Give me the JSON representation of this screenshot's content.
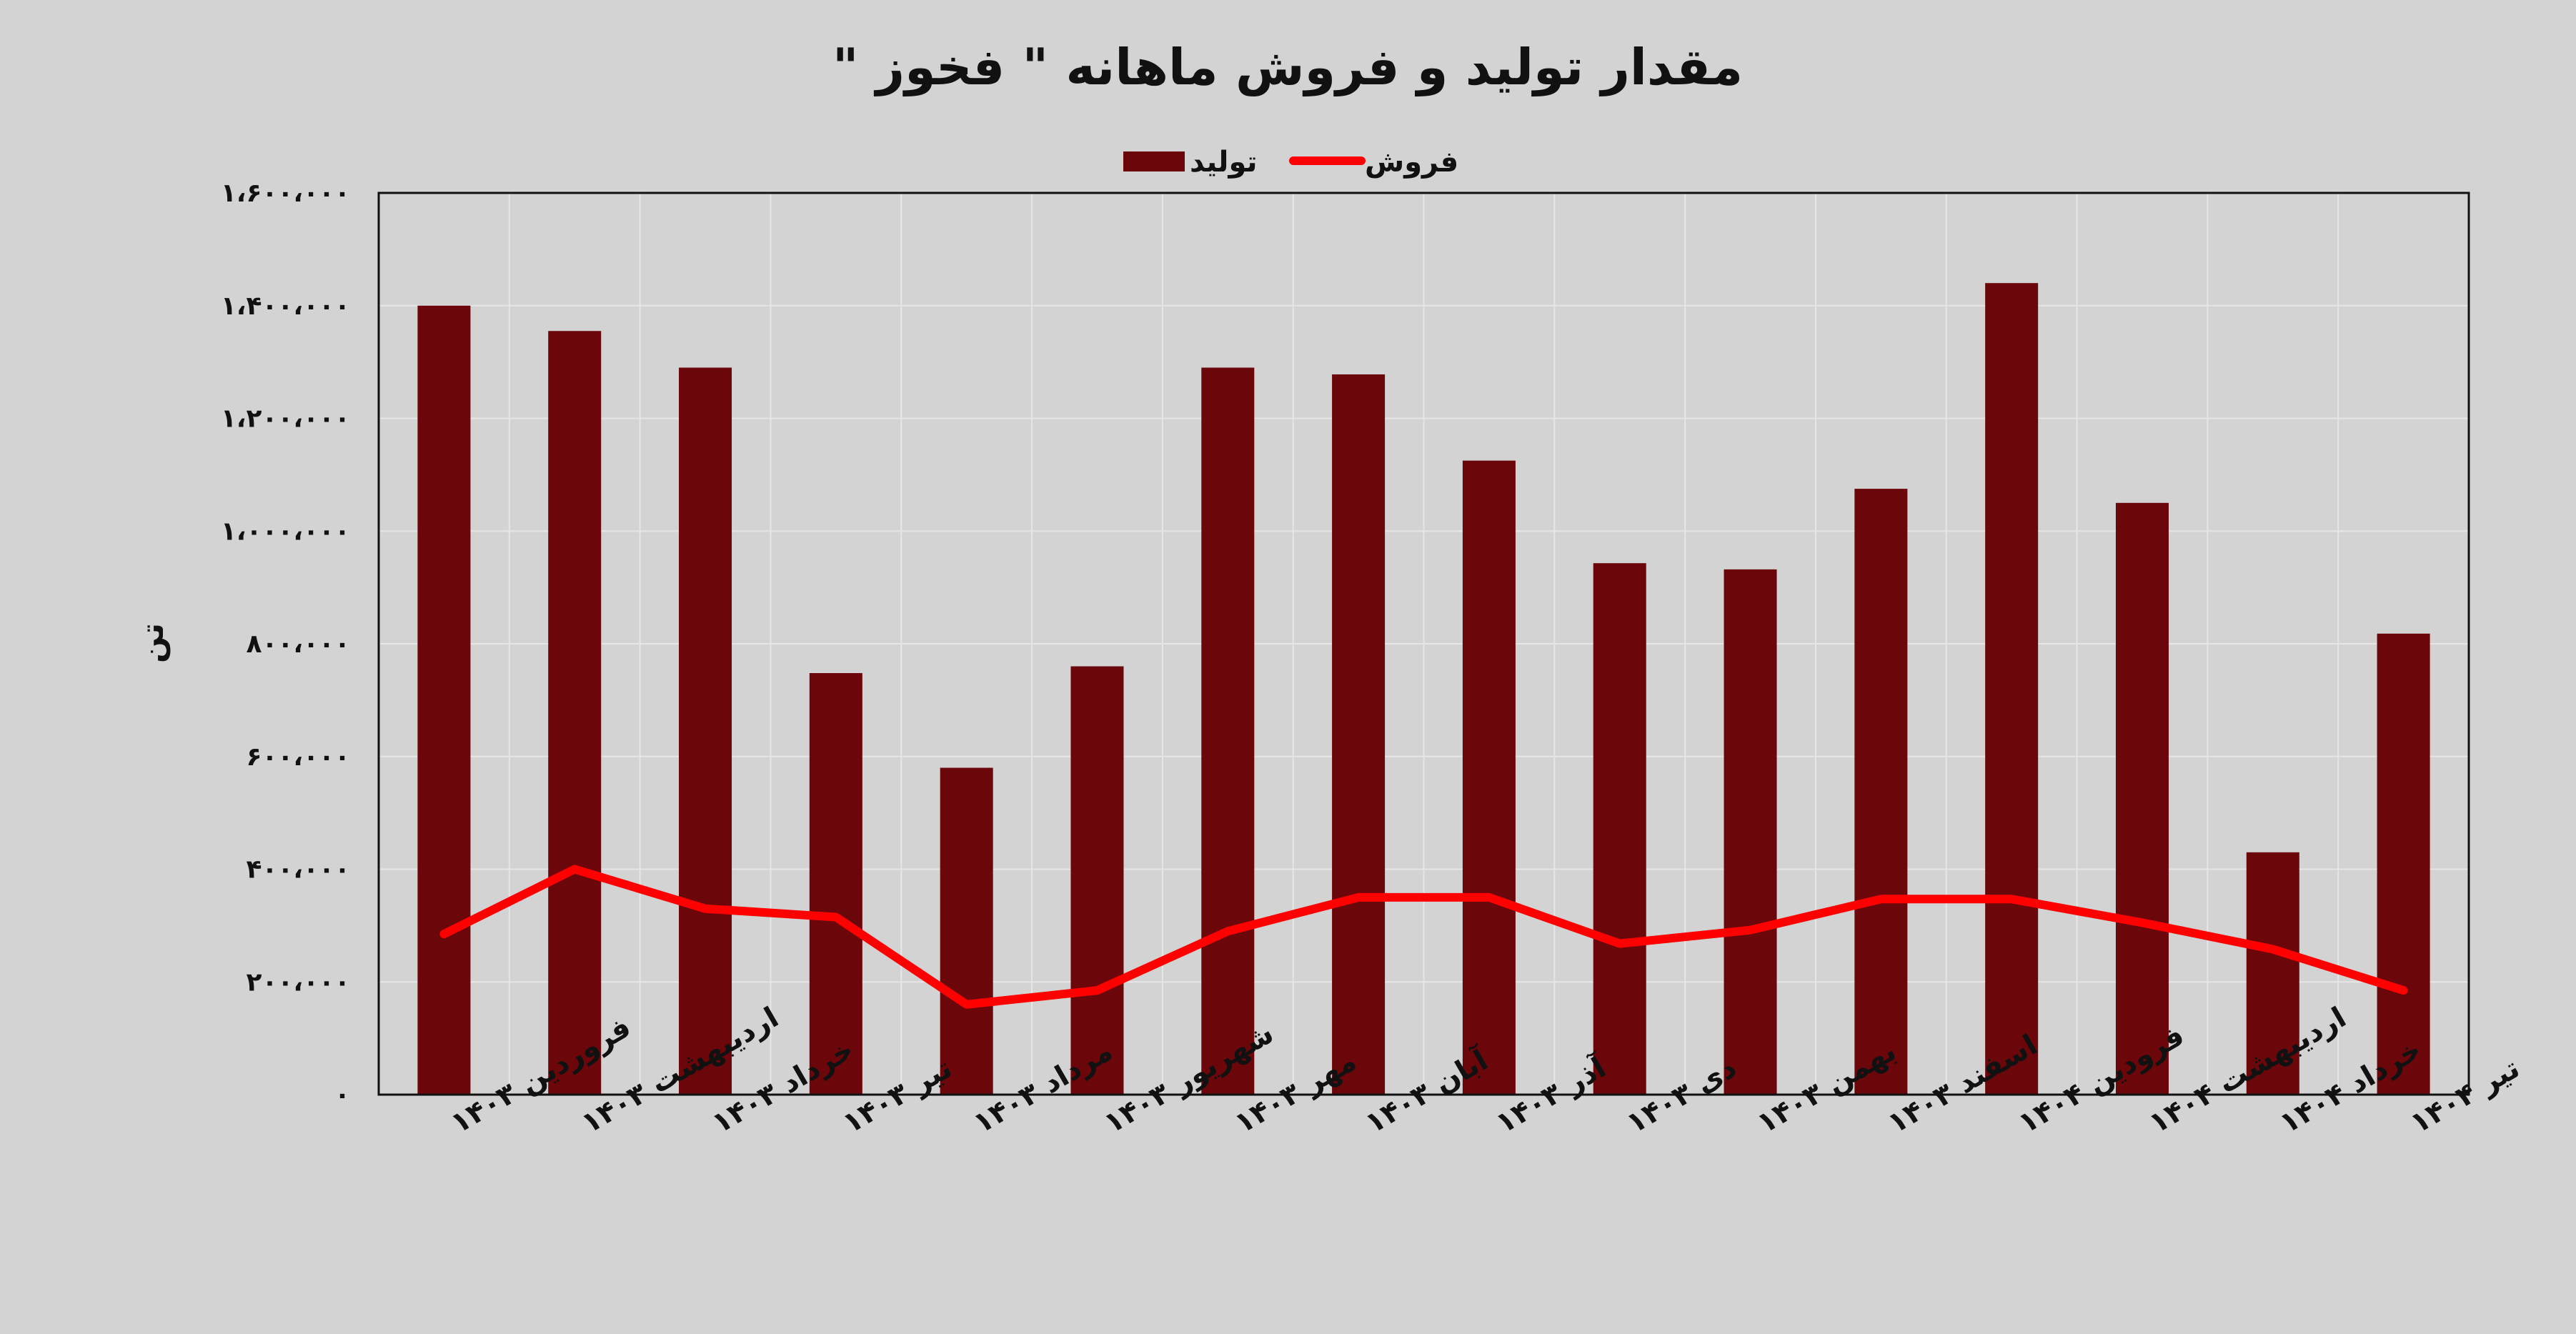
{
  "chart_data": {
    "type": "bar",
    "title": "مقدار تولید و فروش ماهانه \" فخوز \"",
    "ylabel": "تن",
    "xlabel": "",
    "ylim": [
      0,
      1600000
    ],
    "yticks": [
      0,
      200000,
      400000,
      600000,
      800000,
      1000000,
      1200000,
      1400000,
      1600000
    ],
    "ytick_labels": [
      "۰",
      "۲۰۰،۰۰۰",
      "۴۰۰،۰۰۰",
      "۶۰۰،۰۰۰",
      "۸۰۰،۰۰۰",
      "۱،۰۰۰،۰۰۰",
      "۱،۲۰۰،۰۰۰",
      "۱،۴۰۰،۰۰۰",
      "۱،۶۰۰،۰۰۰"
    ],
    "grid": true,
    "legend_position": "top-center",
    "categories": [
      "فروردین ۱۴۰۳",
      "اردیبهشت ۱۴۰۳",
      "خرداد ۱۴۰۳",
      "تیر ۱۴۰۳",
      "مرداد ۱۴۰۳",
      "شهریور ۱۴۰۳",
      "مهر ۱۴۰۳",
      "آبان ۱۴۰۳",
      "آذر ۱۴۰۳",
      "دی ۱۴۰۳",
      "بهمن ۱۴۰۳",
      "اسفند ۱۴۰۳",
      "فرودین ۱۴۰۴",
      "اردیبهشت ۱۴۰۴",
      "خرداد ۱۴۰۴",
      "تیر ۱۴۰۴"
    ],
    "series": [
      {
        "name": "تولید",
        "type": "bar",
        "color": "#6b060b",
        "values": [
          1400000,
          1355000,
          1290000,
          748000,
          580000,
          760000,
          1290000,
          1278000,
          1125000,
          943000,
          932000,
          1075000,
          1440000,
          1050000,
          430000,
          818000
        ]
      },
      {
        "name": "فروش",
        "type": "line",
        "color": "#ff0000",
        "values": [
          285000,
          400000,
          330000,
          315000,
          160000,
          185000,
          290000,
          350000,
          350000,
          268000,
          292000,
          347000,
          347000,
          305000,
          258000,
          185000
        ]
      }
    ]
  },
  "colors": {
    "background": "#d3d3d3",
    "plot_background": "#d3d3d3",
    "gridline": "#e6e6e6",
    "axis": "#111111"
  }
}
